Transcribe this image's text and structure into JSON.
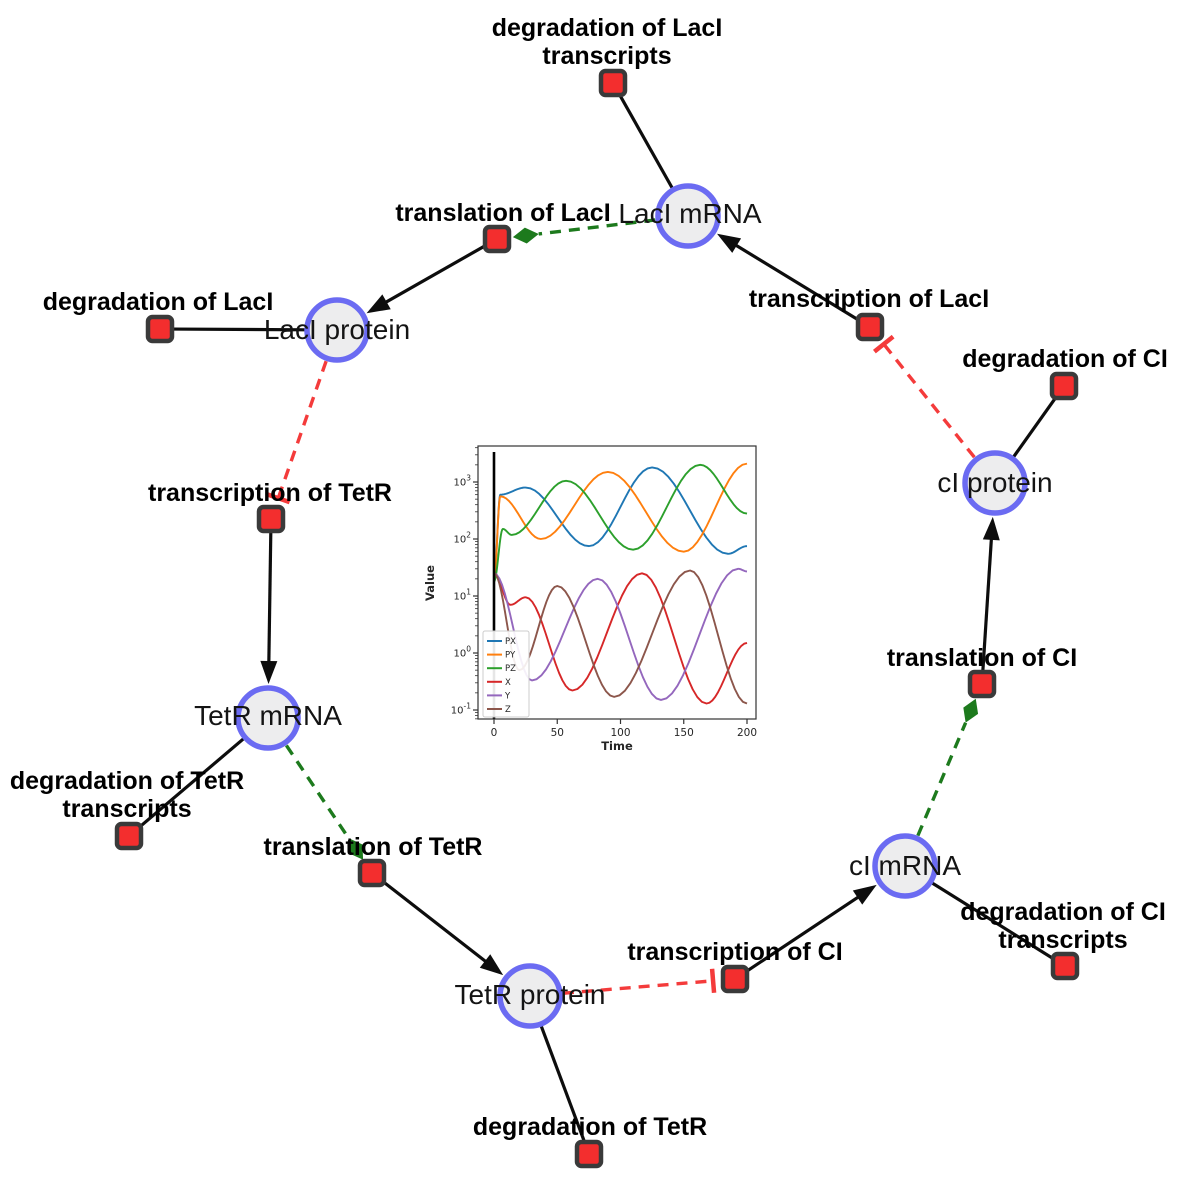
{
  "diagram": {
    "species": [
      {
        "id": "laci_mrna",
        "label": "LacI mRNA"
      },
      {
        "id": "laci_protein",
        "label": "LacI protein"
      },
      {
        "id": "tetr_mrna",
        "label": "TetR mRNA"
      },
      {
        "id": "tetr_protein",
        "label": "TetR protein"
      },
      {
        "id": "ci_mrna",
        "label": "cI mRNA"
      },
      {
        "id": "ci_protein",
        "label": "cI protein"
      }
    ],
    "reactions": [
      {
        "id": "r_deg_laci_tx",
        "lines": [
          "degradation of LacI",
          "transcripts"
        ]
      },
      {
        "id": "r_transl_laci",
        "lines": [
          "translation of LacI"
        ]
      },
      {
        "id": "r_deg_laci",
        "lines": [
          "degradation of LacI"
        ]
      },
      {
        "id": "r_txn_laci",
        "lines": [
          "transcription of LacI"
        ]
      },
      {
        "id": "r_deg_ci",
        "lines": [
          "degradation of CI"
        ]
      },
      {
        "id": "r_txn_tetr",
        "lines": [
          "transcription of TetR"
        ]
      },
      {
        "id": "r_deg_tetr_tx",
        "lines": [
          "degradation of TetR",
          "transcripts"
        ]
      },
      {
        "id": "r_transl_tetr",
        "lines": [
          "translation of TetR"
        ]
      },
      {
        "id": "r_deg_tetr",
        "lines": [
          "degradation of TetR"
        ]
      },
      {
        "id": "r_txn_ci",
        "lines": [
          "transcription of CI"
        ]
      },
      {
        "id": "r_deg_ci_tx",
        "lines": [
          "degradation of CI",
          "transcripts"
        ]
      },
      {
        "id": "r_transl_ci",
        "lines": [
          "translation of CI"
        ]
      }
    ],
    "edges": [
      {
        "from": "laci_mrna",
        "to": "r_deg_laci_tx",
        "kind": "line"
      },
      {
        "from": "laci_mrna",
        "to": "r_transl_laci",
        "kind": "modifier"
      },
      {
        "from": "r_transl_laci",
        "to": "laci_protein",
        "kind": "arrow"
      },
      {
        "from": "r_txn_laci",
        "to": "laci_mrna",
        "kind": "arrow"
      },
      {
        "from": "ci_protein",
        "to": "r_txn_laci",
        "kind": "inhibition"
      },
      {
        "from": "laci_protein",
        "to": "r_deg_laci",
        "kind": "line"
      },
      {
        "from": "laci_protein",
        "to": "r_txn_tetr",
        "kind": "inhibition"
      },
      {
        "from": "r_txn_tetr",
        "to": "tetr_mrna",
        "kind": "arrow"
      },
      {
        "from": "tetr_mrna",
        "to": "r_deg_tetr_tx",
        "kind": "line"
      },
      {
        "from": "tetr_mrna",
        "to": "r_transl_tetr",
        "kind": "modifier"
      },
      {
        "from": "r_transl_tetr",
        "to": "tetr_protein",
        "kind": "arrow"
      },
      {
        "from": "tetr_protein",
        "to": "r_deg_tetr",
        "kind": "line"
      },
      {
        "from": "tetr_protein",
        "to": "r_txn_ci",
        "kind": "inhibition"
      },
      {
        "from": "r_txn_ci",
        "to": "ci_mrna",
        "kind": "arrow"
      },
      {
        "from": "ci_mrna",
        "to": "r_deg_ci_tx",
        "kind": "line"
      },
      {
        "from": "ci_mrna",
        "to": "r_transl_ci",
        "kind": "modifier"
      },
      {
        "from": "r_transl_ci",
        "to": "ci_protein",
        "kind": "arrow"
      },
      {
        "from": "ci_protein",
        "to": "r_deg_ci",
        "kind": "line"
      }
    ],
    "colors": {
      "species_fill": "#ededee",
      "species_border": "#6b6bf2",
      "reaction_fill": "#f32e2e",
      "reaction_border": "#3a3a3a",
      "edge": "#0d0d0d",
      "modifier": "#1d7a1d",
      "inhibition": "#f43b3b"
    }
  },
  "chart_data": {
    "type": "line",
    "title": "",
    "xlabel": "Time",
    "ylabel": "Value",
    "x_ticks": [
      0,
      50,
      100,
      150,
      200
    ],
    "y_scale": "log",
    "y_tick_exponents": [
      -1,
      0,
      1,
      2,
      3
    ],
    "xlim": [
      -12.6,
      207
    ],
    "ylim": [
      0.069,
      4300
    ],
    "grid": false,
    "legend_position": "lower left",
    "initial_line_x": 0,
    "series": [
      {
        "name": "PX",
        "color": "#1f77b4",
        "keyframes": [
          [
            0,
            18
          ],
          [
            5,
            600
          ],
          [
            25,
            800
          ],
          [
            75,
            75
          ],
          [
            125,
            1800
          ],
          [
            185,
            55
          ],
          [
            200,
            75
          ]
        ]
      },
      {
        "name": "PY",
        "color": "#ff7f0e",
        "keyframes": [
          [
            0,
            18
          ],
          [
            5,
            560
          ],
          [
            37,
            100
          ],
          [
            90,
            1500
          ],
          [
            150,
            60
          ],
          [
            200,
            2100
          ]
        ]
      },
      {
        "name": "PZ",
        "color": "#2ca02c",
        "keyframes": [
          [
            0,
            18
          ],
          [
            7,
            150
          ],
          [
            14,
            118
          ],
          [
            57,
            1050
          ],
          [
            110,
            65
          ],
          [
            163,
            2000
          ],
          [
            200,
            280
          ]
        ]
      },
      {
        "name": "X",
        "color": "#d62728",
        "keyframes": [
          [
            0,
            25
          ],
          [
            13,
            7
          ],
          [
            25,
            9.5
          ],
          [
            62,
            0.22
          ],
          [
            117,
            25
          ],
          [
            168,
            0.13
          ],
          [
            200,
            1.5
          ]
        ]
      },
      {
        "name": "Y",
        "color": "#9467bd",
        "keyframes": [
          [
            0,
            25
          ],
          [
            30,
            0.33
          ],
          [
            82,
            20
          ],
          [
            132,
            0.15
          ],
          [
            193,
            30
          ],
          [
            200,
            27
          ]
        ]
      },
      {
        "name": "Z",
        "color": "#8c564b",
        "keyframes": [
          [
            0,
            25
          ],
          [
            20,
            0.5
          ],
          [
            50,
            15
          ],
          [
            95,
            0.17
          ],
          [
            155,
            28
          ],
          [
            200,
            0.13
          ]
        ]
      }
    ]
  }
}
